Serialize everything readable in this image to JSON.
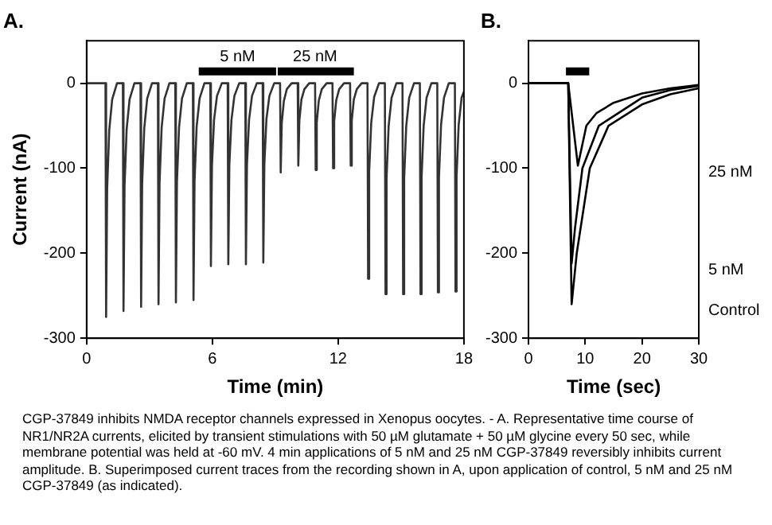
{
  "chart_data": [
    {
      "type": "line",
      "title": "A.",
      "xlabel": "Time (min)",
      "ylabel": "Current (nA)",
      "xlim": [
        0,
        18
      ],
      "xticks": [
        0,
        6,
        12,
        18
      ],
      "ylim": [
        -300,
        50
      ],
      "yticks": [
        -300,
        -200,
        -100,
        0
      ],
      "grid": false,
      "legend": false,
      "marker": "none",
      "series": [
        {
          "color": "#000000",
          "x": [
            5.35,
            9.04,
            9.08,
            9.12,
            12.75
          ],
          "values": [
            14,
            14,
            null,
            14,
            14
          ]
        },
        {
          "color": "#333333",
          "x": [
            0,
            0.9,
            0.93,
            0.98,
            1.08,
            1.22,
            1.45,
            1.73,
            1.76,
            1.81,
            1.91,
            2.05,
            2.28,
            2.57,
            2.6,
            2.65,
            2.75,
            2.89,
            3.12,
            3.4,
            3.43,
            3.48,
            3.58,
            3.72,
            3.95,
            4.23,
            4.26,
            4.31,
            4.41,
            4.55,
            4.78,
            5.07,
            5.1,
            5.15,
            5.25,
            5.39,
            5.62,
            5.9,
            5.93,
            5.98,
            6.08,
            6.22,
            6.45,
            6.73,
            6.76,
            6.81,
            6.91,
            7.05,
            7.28,
            7.57,
            7.6,
            7.65,
            7.75,
            7.89,
            8.12,
            8.4,
            8.43,
            8.48,
            8.58,
            8.72,
            8.95,
            9.23,
            9.26,
            9.31,
            9.41,
            9.55,
            9.78,
            10.07,
            10.1,
            10.15,
            10.25,
            10.39,
            10.62,
            10.9,
            10.93,
            10.98,
            11.08,
            11.22,
            11.45,
            11.73,
            11.76,
            11.81,
            11.91,
            12.05,
            12.28,
            12.57,
            12.6,
            12.65,
            12.75,
            12.89,
            13.12,
            13.4,
            13.43,
            13.48,
            13.58,
            13.72,
            13.95,
            14.23,
            14.26,
            14.31,
            14.41,
            14.55,
            14.78,
            15.07,
            15.1,
            15.15,
            15.25,
            15.39,
            15.62,
            15.9,
            15.93,
            15.98,
            16.08,
            16.22,
            16.45,
            16.73,
            16.76,
            16.81,
            16.91,
            17.05,
            17.28,
            17.57,
            17.6,
            17.65,
            17.75,
            17.89,
            18.0
          ],
          "values": [
            0,
            0,
            -275,
            -124,
            -55,
            -19,
            0,
            0,
            -268,
            -121,
            -54,
            -19,
            0,
            0,
            -263,
            -118,
            -53,
            -18,
            0,
            0,
            -260,
            -117,
            -52,
            -18,
            0,
            0,
            -258,
            -116,
            -52,
            -18,
            0,
            0,
            -255,
            -115,
            -51,
            -18,
            0,
            0,
            -215,
            -97,
            -43,
            -15,
            0,
            0,
            -213,
            -96,
            -43,
            -15,
            0,
            0,
            -213,
            -96,
            -43,
            -15,
            0,
            0,
            -211,
            -95,
            -42,
            -15,
            0,
            0,
            -105,
            -47,
            -21,
            -7,
            0,
            0,
            -97,
            -44,
            -19,
            -7,
            0,
            0,
            -102,
            -46,
            -20,
            -7,
            0,
            0,
            -100,
            -45,
            -20,
            -7,
            0,
            0,
            -97,
            -44,
            -19,
            -7,
            0,
            0,
            -230,
            -104,
            -46,
            -16,
            0,
            0,
            -248,
            -112,
            -50,
            -17,
            0,
            0,
            -248,
            -112,
            -50,
            -17,
            0,
            0,
            -248,
            -112,
            -50,
            -17,
            0,
            0,
            -246,
            -111,
            -49,
            -17,
            0,
            0,
            -245,
            -110,
            -49,
            -17,
            -10
          ]
        }
      ],
      "annotations": [
        {
          "text": "5 nM",
          "x": 7.2,
          "y": 14
        },
        {
          "text": "25 nM",
          "x": 10.9,
          "y": 14
        },
        "CGP-37849 inhibits NMDA receptor channels expressed in Xenopus oocytes. - A. Representative time course of NR1/NR2A currents, elicited by transient stimulations with 50 µM glutamate + 50 µM glycine every 50 sec, while membrane potential was held at -60 mV. 4 min applications of 5 nM and 25 nM CGP-37849 reversibly inhibits current amplitude. B. Superimposed current traces from the recording shown in A, upon application of control, 5 nM and 25 nM CGP-37849 (as indicated)."
      ]
    },
    {
      "type": "line",
      "title": "B.",
      "xlabel": "Time (sec)",
      "xlim": [
        0,
        30
      ],
      "xticks": [
        0,
        10,
        20,
        30
      ],
      "ylim": [
        -300,
        50
      ],
      "yticks": [
        -300,
        -200,
        -100,
        0
      ],
      "grid": false,
      "legend": false,
      "marker": "none",
      "series": [
        {
          "color": "#000000",
          "x": [
            6.6,
            10.7
          ],
          "values": [
            14,
            14
          ]
        },
        {
          "name": "25 nM",
          "color": "#000000",
          "x": [
            0,
            7,
            8.7,
            10.2,
            12,
            15,
            20,
            25,
            30
          ],
          "values": [
            0,
            0,
            -97,
            -50,
            -35,
            -23,
            -12,
            -6,
            -2
          ]
        },
        {
          "name": "5 nM",
          "color": "#000000",
          "x": [
            0,
            7,
            7.6,
            8.2,
            9.5,
            12.4,
            20,
            25,
            30
          ],
          "values": [
            0,
            0,
            -212,
            -170,
            -100,
            -50,
            -17,
            -8,
            -3
          ]
        },
        {
          "name": "Control",
          "color": "#000000",
          "x": [
            0,
            7,
            7.6,
            8.5,
            10.8,
            14.1,
            20,
            25,
            30
          ],
          "values": [
            0,
            0,
            -260,
            -200,
            -100,
            -50,
            -25,
            -13,
            -6
          ]
        }
      ]
    }
  ]
}
